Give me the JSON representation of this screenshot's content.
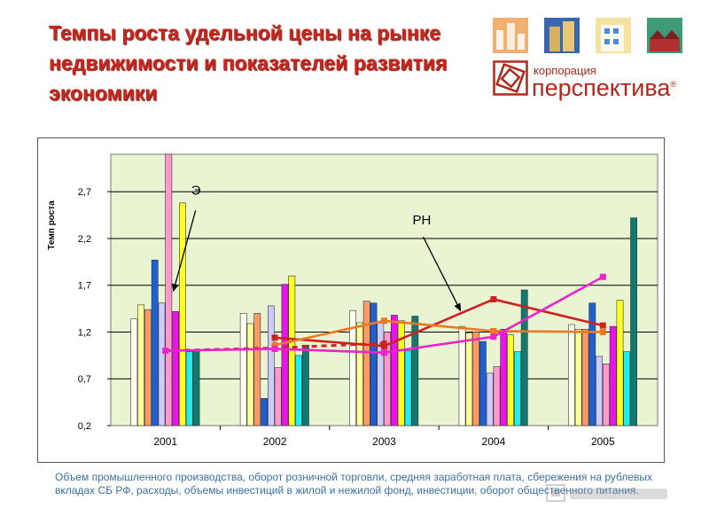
{
  "header": {
    "title_lines": [
      "Темпы роста удельной цены на рынке",
      "недвижимости и показателей развития",
      "экономики"
    ]
  },
  "logo": {
    "word_small": "корпорация",
    "word_big": "перспектива",
    "registered": "®",
    "color": "#b3261b"
  },
  "chart_data": {
    "type": "bar",
    "ylabel": "Темп роста",
    "ylim": [
      0.2,
      3.1
    ],
    "yticks": [
      0.2,
      0.7,
      1.2,
      1.7,
      2.2,
      2.7
    ],
    "ytick_labels": [
      "0,2",
      "0,7",
      "1,2",
      "1,7",
      "2,2",
      "2,7"
    ],
    "categories": [
      "2001",
      "2002",
      "2003",
      "2004",
      "2005"
    ],
    "grid": true,
    "plot_background": "#e8f4d2",
    "bar_series": [
      {
        "color": "#fffff0",
        "values": [
          1.34,
          1.4,
          1.43,
          1.26,
          1.28
        ]
      },
      {
        "color": "#ffff99",
        "values": [
          1.49,
          1.29,
          1.3,
          1.19,
          1.23
        ]
      },
      {
        "color": "#ff9966",
        "values": [
          1.44,
          1.4,
          1.53,
          1.2,
          1.23
        ]
      },
      {
        "color": "#1f5fd0",
        "values": [
          1.97,
          0.49,
          1.51,
          1.1,
          1.51
        ]
      },
      {
        "color": "#ccccff",
        "values": [
          1.51,
          1.48,
          1.3,
          0.76,
          0.94
        ]
      },
      {
        "color": "#ff99cc",
        "values": [
          3.1,
          0.82,
          1.2,
          0.83,
          0.86
        ]
      },
      {
        "color": "#ee11ee",
        "values": [
          1.42,
          1.71,
          1.38,
          1.23,
          1.26
        ]
      },
      {
        "color": "#ffff22",
        "values": [
          2.58,
          1.8,
          1.32,
          1.17,
          1.54
        ]
      },
      {
        "color": "#22eeee",
        "values": [
          0.99,
          0.95,
          1.0,
          0.99,
          0.99
        ]
      },
      {
        "color": "#117a6e",
        "values": [
          1.0,
          1.06,
          1.37,
          1.65,
          2.42
        ]
      }
    ],
    "line_series": [
      {
        "color": "#cc2222",
        "dash": [
          1.0,
          1.03,
          1.08,
          null,
          null
        ],
        "values": [
          null,
          1.14,
          1.05,
          1.55,
          1.27
        ]
      },
      {
        "color": "#ee7722",
        "values": [
          null,
          1.06,
          1.32,
          1.21,
          1.2
        ]
      },
      {
        "color": "#ee22cc",
        "values": [
          1.0,
          1.02,
          0.98,
          1.15,
          1.79
        ]
      }
    ],
    "annotations": [
      {
        "text": "Э",
        "x": "2001",
        "y": 2.67
      },
      {
        "text": "РН",
        "x": "2003",
        "y": 2.35
      }
    ]
  },
  "caption": "Объем промышленного производства, оборот розничной торговли, средняя заработная плата, сбережения на рублевых вкладах СБ РФ, расходы, объемы инвестиций в жилой и нежилой фонд, инвестиции, оборот общественного питания."
}
